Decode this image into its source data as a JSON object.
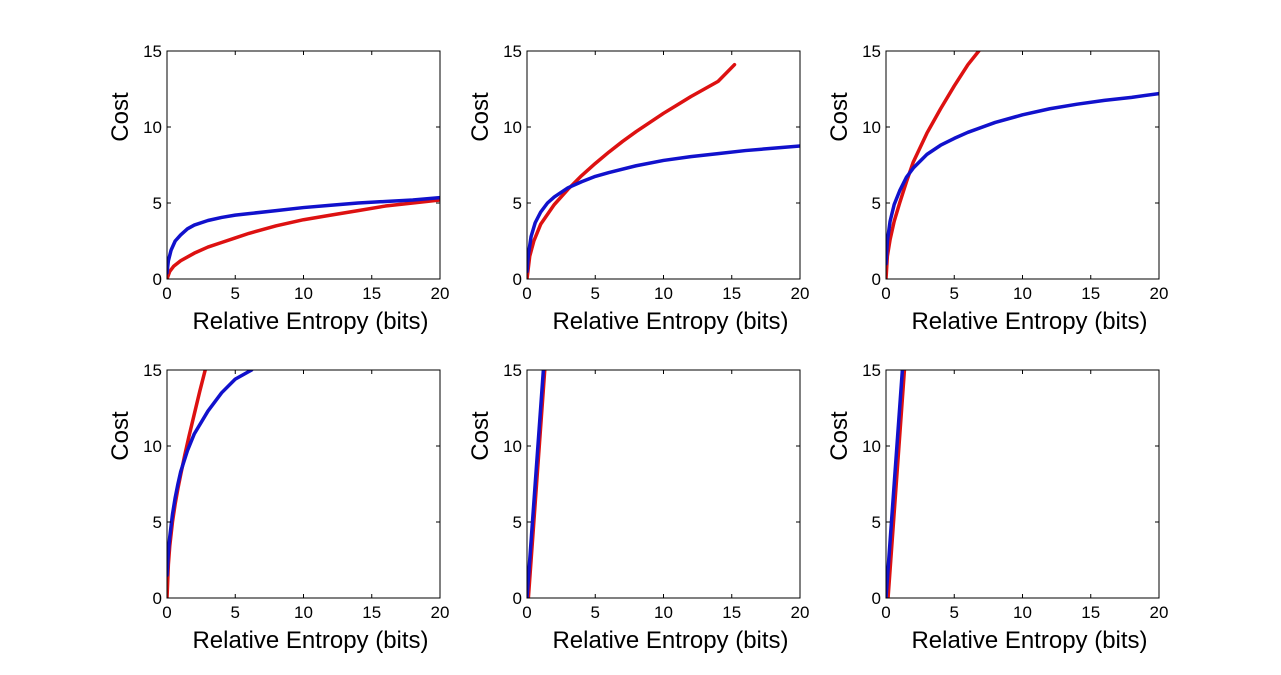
{
  "chart_data": [
    {
      "type": "line",
      "title": "",
      "xlabel": "Relative Entropy (bits)",
      "ylabel": "Cost",
      "xlim": [
        0,
        20
      ],
      "ylim": [
        0,
        15
      ],
      "xticks": [
        0,
        5,
        10,
        15,
        20
      ],
      "yticks": [
        0,
        5,
        10,
        15
      ],
      "series": [
        {
          "name": "red",
          "color": "#dd1111",
          "x": [
            0,
            0.2,
            0.5,
            1,
            2,
            3,
            4,
            5,
            6,
            8,
            10,
            12,
            14,
            16,
            18,
            20
          ],
          "y": [
            0,
            0.5,
            0.85,
            1.2,
            1.7,
            2.1,
            2.4,
            2.7,
            3.0,
            3.5,
            3.9,
            4.2,
            4.5,
            4.8,
            5.0,
            5.2
          ]
        },
        {
          "name": "blue",
          "color": "#1111cc",
          "x": [
            0,
            0.1,
            0.3,
            0.6,
            1,
            1.5,
            2,
            3,
            4,
            5,
            6,
            8,
            10,
            12,
            14,
            16,
            18,
            20
          ],
          "y": [
            0.4,
            1.2,
            1.9,
            2.5,
            2.9,
            3.3,
            3.55,
            3.85,
            4.05,
            4.2,
            4.3,
            4.5,
            4.7,
            4.85,
            5.0,
            5.1,
            5.2,
            5.35
          ]
        }
      ]
    },
    {
      "type": "line",
      "title": "",
      "xlabel": "Relative Entropy (bits)",
      "ylabel": "Cost",
      "xlim": [
        0,
        20
      ],
      "ylim": [
        0,
        15
      ],
      "xticks": [
        0,
        5,
        10,
        15,
        20
      ],
      "yticks": [
        0,
        5,
        10,
        15
      ],
      "series": [
        {
          "name": "red",
          "color": "#dd1111",
          "x": [
            0,
            0.2,
            0.5,
            1,
            2,
            3,
            4,
            5,
            6,
            7,
            8,
            9,
            10,
            11,
            12,
            13,
            14,
            15.2
          ],
          "y": [
            0,
            1.5,
            2.5,
            3.6,
            4.9,
            5.9,
            6.8,
            7.6,
            8.35,
            9.05,
            9.7,
            10.3,
            10.9,
            11.45,
            12.0,
            12.5,
            13.0,
            14.1
          ]
        },
        {
          "name": "blue",
          "color": "#1111cc",
          "x": [
            0,
            0.1,
            0.3,
            0.6,
            1,
            1.5,
            2,
            3,
            4,
            5,
            6,
            8,
            10,
            12,
            14,
            16,
            18,
            20
          ],
          "y": [
            0.5,
            1.6,
            2.8,
            3.7,
            4.4,
            5.0,
            5.4,
            6.0,
            6.4,
            6.75,
            7.0,
            7.45,
            7.8,
            8.05,
            8.25,
            8.45,
            8.6,
            8.75
          ]
        }
      ]
    },
    {
      "type": "line",
      "title": "",
      "xlabel": "Relative Entropy (bits)",
      "ylabel": "Cost",
      "xlim": [
        0,
        20
      ],
      "ylim": [
        0,
        15
      ],
      "xticks": [
        0,
        5,
        10,
        15,
        20
      ],
      "yticks": [
        0,
        5,
        10,
        15
      ],
      "series": [
        {
          "name": "red",
          "color": "#dd1111",
          "x": [
            0,
            0.1,
            0.3,
            0.6,
            1,
            1.5,
            2,
            3,
            4,
            5,
            6,
            6.8
          ],
          "y": [
            0,
            1.5,
            2.6,
            3.8,
            5.0,
            6.4,
            7.7,
            9.6,
            11.2,
            12.7,
            14.1,
            15
          ]
        },
        {
          "name": "blue",
          "color": "#1111cc",
          "x": [
            0,
            0.1,
            0.3,
            0.6,
            1,
            1.5,
            2,
            3,
            4,
            5,
            6,
            8,
            10,
            12,
            14,
            16,
            18,
            20
          ],
          "y": [
            1.0,
            2.5,
            3.8,
            4.9,
            5.8,
            6.7,
            7.3,
            8.2,
            8.8,
            9.25,
            9.65,
            10.3,
            10.8,
            11.2,
            11.5,
            11.75,
            11.95,
            12.2
          ]
        }
      ]
    },
    {
      "type": "line",
      "title": "",
      "xlabel": "Relative Entropy (bits)",
      "ylabel": "Cost",
      "xlim": [
        0,
        20
      ],
      "ylim": [
        0,
        15
      ],
      "xticks": [
        0,
        5,
        10,
        15,
        20
      ],
      "yticks": [
        0,
        5,
        10,
        15
      ],
      "series": [
        {
          "name": "red",
          "color": "#dd1111",
          "x": [
            0,
            0.1,
            0.2,
            0.4,
            0.6,
            0.8,
            1,
            1.3,
            1.6,
            2,
            2.4,
            2.8
          ],
          "y": [
            0,
            2.2,
            3.4,
            5.0,
            6.2,
            7.2,
            8.1,
            9.4,
            10.6,
            12.1,
            13.6,
            15
          ]
        },
        {
          "name": "blue",
          "color": "#1111cc",
          "x": [
            0,
            0.1,
            0.2,
            0.4,
            0.6,
            0.8,
            1,
            1.5,
            2,
            3,
            4,
            5,
            6.2
          ],
          "y": [
            1.5,
            3.0,
            4.0,
            5.5,
            6.6,
            7.5,
            8.3,
            9.7,
            10.8,
            12.3,
            13.5,
            14.4,
            15
          ]
        }
      ]
    },
    {
      "type": "line",
      "title": "",
      "xlabel": "Relative Entropy (bits)",
      "ylabel": "Cost",
      "xlim": [
        0,
        20
      ],
      "ylim": [
        0,
        15
      ],
      "xticks": [
        0,
        5,
        10,
        15,
        20
      ],
      "yticks": [
        0,
        5,
        10,
        15
      ],
      "series": [
        {
          "name": "red",
          "color": "#dd1111",
          "x": [
            0.1,
            0.3,
            0.5,
            0.7,
            0.9,
            1.1,
            1.3
          ],
          "y": [
            0,
            2.5,
            5.0,
            7.5,
            10.0,
            12.5,
            15
          ]
        },
        {
          "name": "blue",
          "color": "#1111cc",
          "x": [
            0,
            0.2,
            0.4,
            0.6,
            0.8,
            1.0,
            1.2
          ],
          "y": [
            0,
            2.5,
            5.0,
            7.5,
            10.0,
            12.5,
            15
          ]
        }
      ]
    },
    {
      "type": "line",
      "title": "",
      "xlabel": "Relative Entropy (bits)",
      "ylabel": "Cost",
      "xlim": [
        0,
        20
      ],
      "ylim": [
        0,
        15
      ],
      "xticks": [
        0,
        5,
        10,
        15,
        20
      ],
      "yticks": [
        0,
        5,
        10,
        15
      ],
      "series": [
        {
          "name": "red",
          "color": "#dd1111",
          "x": [
            0.15,
            0.35,
            0.55,
            0.75,
            0.95,
            1.15,
            1.35
          ],
          "y": [
            0,
            2.5,
            5.0,
            7.5,
            10.0,
            12.5,
            15
          ]
        },
        {
          "name": "blue",
          "color": "#1111cc",
          "x": [
            0,
            0.2,
            0.4,
            0.6,
            0.8,
            1.0,
            1.2
          ],
          "y": [
            0,
            2.5,
            5.0,
            7.5,
            10.0,
            12.5,
            15
          ]
        }
      ]
    }
  ]
}
